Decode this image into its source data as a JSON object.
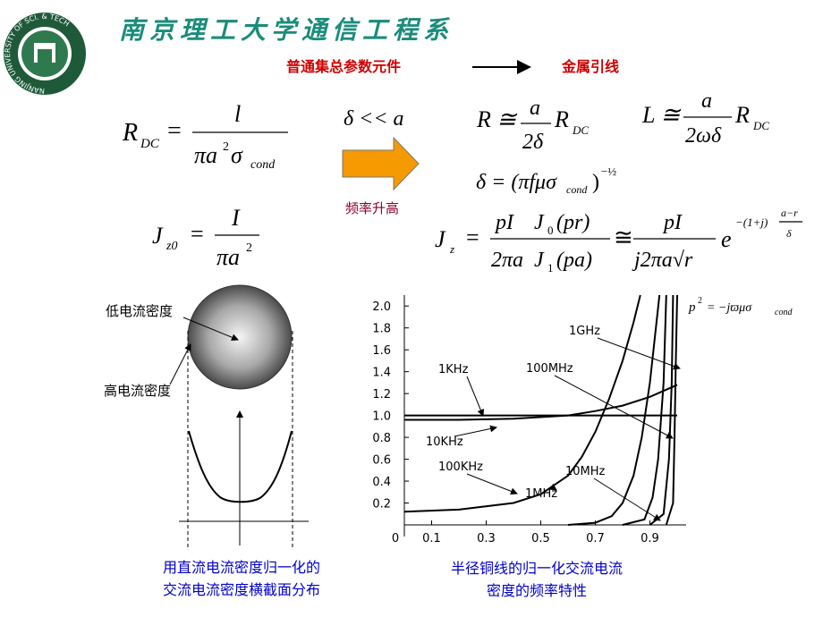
{
  "header": {
    "logo_text": "NANJING UNIVERSITY OF SCI. & TECH",
    "title": "南京理工大学通信工程系",
    "left_term": "普通集总参数元件",
    "right_term": "金属引线"
  },
  "formulas": {
    "rdc": {
      "lhs": "R",
      "lhs_sub": "DC",
      "eq": "=",
      "num": "l",
      "den": "πa",
      "den_sup": "2",
      "den_sym": "σ",
      "den_sub": "cond"
    },
    "cond": "δ << a",
    "r": {
      "lhs": "R ≅",
      "num": "a",
      "den": "2δ",
      "rhs": "R",
      "rhs_sub": "DC"
    },
    "l": {
      "lhs": "L ≅",
      "num": "a",
      "den": "2ωδ",
      "rhs": "R",
      "rhs_sub": "DC"
    },
    "delta": {
      "body": "δ = (πfμσ",
      "sub": "cond",
      "close": ")",
      "sup": "−½"
    },
    "jz0": {
      "lhs": "J",
      "lhs_sub": "z0",
      "eq": "=",
      "num": "I",
      "den": "πa",
      "den_sup": "2"
    },
    "jz": {
      "lhs": "J",
      "lhs_sub": "z",
      "eq": "=",
      "num1": "pI",
      "den1": "2πa",
      "j": "J",
      "sub0": "0",
      "arg0": "(pr)",
      "sub1": "1",
      "arg1": "(pa)",
      "approx": "≅",
      "num2": "pI",
      "den2": "j2πa√r",
      "e": "e",
      "exp": "−(1+j)",
      "exp_num": "a−r",
      "exp_den": "δ"
    }
  },
  "arrow_label": "频率升高",
  "figure_left": {
    "low_label": "低电流密度",
    "high_label": "高电流密度",
    "caption": [
      "用直流电流密度归一化的",
      "交流电流密度横截面分布"
    ]
  },
  "chart_data": {
    "type": "line",
    "annotation": {
      "p": "p",
      "sup": "2",
      "body": "= −jϖμσ",
      "sub": "cond"
    },
    "caption": [
      "半径铜线的归一化交流电流",
      "密度的频率特性"
    ],
    "xlim": [
      0,
      1
    ],
    "ylim": [
      0,
      2.1
    ],
    "xticks": [
      0,
      0.1,
      0.3,
      0.5,
      0.7,
      0.9
    ],
    "yticks": [
      0.2,
      0.4,
      0.6,
      0.8,
      {
        "value": 1,
        "label": "1.0"
      },
      1.2,
      1.4,
      1.6,
      1.8,
      {
        "value": 2,
        "label": "2.0"
      }
    ],
    "series": [
      {
        "name": "1KHz",
        "color": "#000000",
        "x": [
          0,
          1
        ],
        "values": [
          1,
          1
        ]
      },
      {
        "name": "10KHz",
        "color": "#000000",
        "x": [
          0,
          0.2,
          0.4,
          0.6,
          0.7,
          0.8,
          0.9,
          1
        ],
        "values": [
          0.96,
          0.96,
          0.97,
          1,
          1.04,
          1.09,
          1.17,
          1.28
        ]
      },
      {
        "name": "100KHz",
        "color": "#000000",
        "x": [
          0,
          0.2,
          0.4,
          0.5,
          0.6,
          0.65,
          0.7,
          0.75,
          0.8,
          0.84,
          0.865
        ],
        "values": [
          0.12,
          0.14,
          0.2,
          0.28,
          0.45,
          0.62,
          0.85,
          1.15,
          1.5,
          1.85,
          2.1
        ]
      },
      {
        "name": "1MHz",
        "color": "#000000",
        "x": [
          0.6,
          0.7,
          0.76,
          0.8,
          0.84,
          0.87,
          0.9,
          0.935
        ],
        "values": [
          0,
          0.02,
          0.08,
          0.2,
          0.45,
          0.8,
          1.3,
          2.1
        ]
      },
      {
        "name": "10MHz",
        "color": "#000000",
        "x": [
          0.8,
          0.88,
          0.91,
          0.93,
          0.95,
          0.96
        ],
        "values": [
          0,
          0.05,
          0.25,
          0.6,
          1.3,
          2.1
        ]
      },
      {
        "name": "100MHz",
        "color": "#000000",
        "x": [
          0.9,
          0.95,
          0.97,
          0.98,
          0.985
        ],
        "values": [
          0,
          0.1,
          0.6,
          1.3,
          2.1
        ]
      },
      {
        "name": "1GHz",
        "color": "#000000",
        "x": [
          0.96,
          0.985,
          0.99,
          0.995,
          1
        ],
        "values": [
          0,
          0.2,
          0.8,
          1.5,
          2.1
        ]
      }
    ]
  }
}
